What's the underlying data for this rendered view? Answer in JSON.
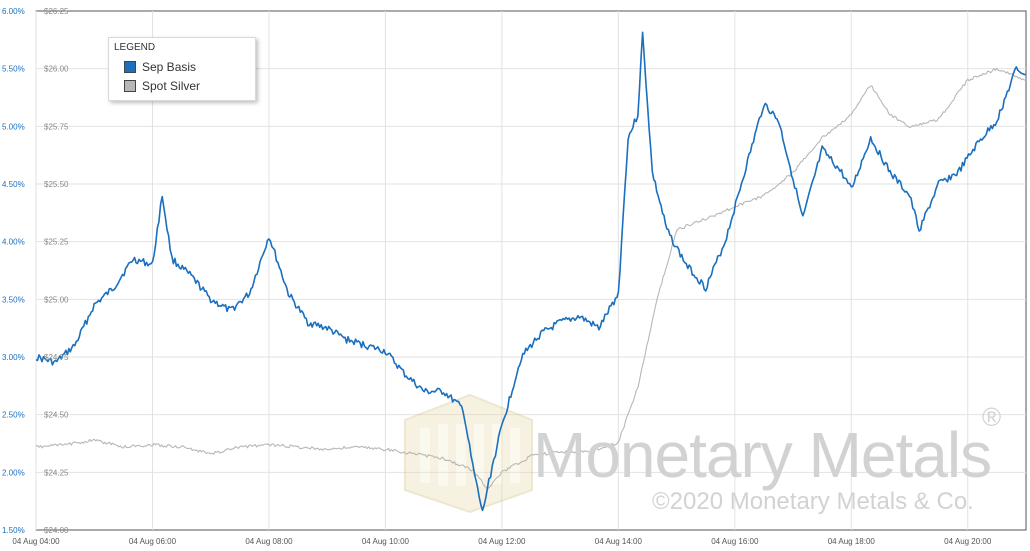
{
  "chart_data": {
    "type": "line",
    "legend": {
      "title": "LEGEND",
      "placement": "top-left"
    },
    "y_left": {
      "label_ticks": [
        "6.00%",
        "5.50%",
        "5.00%",
        "4.50%",
        "4.00%",
        "3.50%",
        "3.00%",
        "2.50%",
        "2.00%",
        "1.50%"
      ],
      "range": [
        1.5,
        6.0
      ],
      "unit": "%"
    },
    "y_right": {
      "label_ticks": [
        "$26.25",
        "$26.00",
        "$25.75",
        "$25.50",
        "$25.25",
        "$25.00",
        "$24.75",
        "$24.50",
        "$24.25",
        "$24.00"
      ],
      "range": [
        24.0,
        26.25
      ],
      "unit": "$"
    },
    "x_axis": {
      "tick_labels": [
        "04 Aug 04:00",
        "04 Aug 06:00",
        "04 Aug 08:00",
        "04 Aug 10:00",
        "04 Aug 12:00",
        "04 Aug 14:00",
        "04 Aug 16:00",
        "04 Aug 18:00",
        "04 Aug 20:00"
      ],
      "range": [
        "04 Aug 04:00",
        "04 Aug 21:00"
      ]
    },
    "grid": true,
    "series": [
      {
        "name": "Sep Basis",
        "color": "#1a6fbf",
        "axis": "left",
        "points": [
          [
            "04 Aug 04:00",
            3.0
          ],
          [
            "04 Aug 04:20",
            2.95
          ],
          [
            "04 Aug 04:40",
            3.1
          ],
          [
            "04 Aug 05:00",
            3.45
          ],
          [
            "04 Aug 05:20",
            3.6
          ],
          [
            "04 Aug 05:40",
            3.85
          ],
          [
            "04 Aug 06:00",
            3.8
          ],
          [
            "04 Aug 06:10",
            4.4
          ],
          [
            "04 Aug 06:20",
            3.85
          ],
          [
            "04 Aug 06:40",
            3.7
          ],
          [
            "04 Aug 07:00",
            3.5
          ],
          [
            "04 Aug 07:20",
            3.4
          ],
          [
            "04 Aug 07:40",
            3.55
          ],
          [
            "04 Aug 08:00",
            4.05
          ],
          [
            "04 Aug 08:20",
            3.55
          ],
          [
            "04 Aug 08:40",
            3.3
          ],
          [
            "04 Aug 09:00",
            3.25
          ],
          [
            "04 Aug 09:20",
            3.15
          ],
          [
            "04 Aug 09:40",
            3.1
          ],
          [
            "04 Aug 10:00",
            3.05
          ],
          [
            "04 Aug 10:20",
            2.85
          ],
          [
            "04 Aug 10:40",
            2.7
          ],
          [
            "04 Aug 11:00",
            2.7
          ],
          [
            "04 Aug 11:20",
            2.55
          ],
          [
            "04 Aug 11:30",
            2.05
          ],
          [
            "04 Aug 11:40",
            1.65
          ],
          [
            "04 Aug 11:50",
            2.05
          ],
          [
            "04 Aug 12:00",
            2.4
          ],
          [
            "04 Aug 12:20",
            3.0
          ],
          [
            "04 Aug 12:40",
            3.2
          ],
          [
            "04 Aug 13:00",
            3.3
          ],
          [
            "04 Aug 13:20",
            3.35
          ],
          [
            "04 Aug 13:40",
            3.25
          ],
          [
            "04 Aug 14:00",
            3.55
          ],
          [
            "04 Aug 14:10",
            4.9
          ],
          [
            "04 Aug 14:20",
            5.1
          ],
          [
            "04 Aug 14:25",
            5.8
          ],
          [
            "04 Aug 14:35",
            4.6
          ],
          [
            "04 Aug 14:50",
            4.1
          ],
          [
            "04 Aug 15:10",
            3.8
          ],
          [
            "04 Aug 15:30",
            3.6
          ],
          [
            "04 Aug 15:50",
            4.0
          ],
          [
            "04 Aug 16:10",
            4.6
          ],
          [
            "04 Aug 16:30",
            5.2
          ],
          [
            "04 Aug 16:45",
            5.05
          ],
          [
            "04 Aug 17:00",
            4.55
          ],
          [
            "04 Aug 17:10",
            4.2
          ],
          [
            "04 Aug 17:30",
            4.8
          ],
          [
            "04 Aug 17:50",
            4.6
          ],
          [
            "04 Aug 18:00",
            4.45
          ],
          [
            "04 Aug 18:20",
            4.9
          ],
          [
            "04 Aug 18:40",
            4.6
          ],
          [
            "04 Aug 19:00",
            4.4
          ],
          [
            "04 Aug 19:10",
            4.1
          ],
          [
            "04 Aug 19:30",
            4.5
          ],
          [
            "04 Aug 19:50",
            4.6
          ],
          [
            "04 Aug 20:10",
            4.85
          ],
          [
            "04 Aug 20:30",
            5.05
          ],
          [
            "04 Aug 20:50",
            5.5
          ],
          [
            "04 Aug 21:00",
            5.45
          ]
        ]
      },
      {
        "name": "Spot Silver",
        "color": "#b7b7b7",
        "axis": "right",
        "points": [
          [
            "04 Aug 04:00",
            24.36
          ],
          [
            "04 Aug 04:30",
            24.37
          ],
          [
            "04 Aug 05:00",
            24.39
          ],
          [
            "04 Aug 05:30",
            24.36
          ],
          [
            "04 Aug 06:00",
            24.37
          ],
          [
            "04 Aug 06:30",
            24.36
          ],
          [
            "04 Aug 07:00",
            24.33
          ],
          [
            "04 Aug 07:30",
            24.36
          ],
          [
            "04 Aug 08:00",
            24.37
          ],
          [
            "04 Aug 08:30",
            24.36
          ],
          [
            "04 Aug 09:00",
            24.35
          ],
          [
            "04 Aug 09:30",
            24.36
          ],
          [
            "04 Aug 10:00",
            24.35
          ],
          [
            "04 Aug 10:30",
            24.33
          ],
          [
            "04 Aug 11:00",
            24.31
          ],
          [
            "04 Aug 11:30",
            24.26
          ],
          [
            "04 Aug 11:45",
            24.18
          ],
          [
            "04 Aug 12:00",
            24.25
          ],
          [
            "04 Aug 12:30",
            24.32
          ],
          [
            "04 Aug 13:00",
            24.34
          ],
          [
            "04 Aug 13:30",
            24.34
          ],
          [
            "04 Aug 14:00",
            24.38
          ],
          [
            "04 Aug 14:20",
            24.62
          ],
          [
            "04 Aug 14:40",
            25.0
          ],
          [
            "04 Aug 15:00",
            25.3
          ],
          [
            "04 Aug 15:30",
            25.35
          ],
          [
            "04 Aug 16:00",
            25.4
          ],
          [
            "04 Aug 16:30",
            25.45
          ],
          [
            "04 Aug 17:00",
            25.55
          ],
          [
            "04 Aug 17:30",
            25.7
          ],
          [
            "04 Aug 18:00",
            25.8
          ],
          [
            "04 Aug 18:20",
            25.93
          ],
          [
            "04 Aug 18:40",
            25.8
          ],
          [
            "04 Aug 19:00",
            25.75
          ],
          [
            "04 Aug 19:30",
            25.78
          ],
          [
            "04 Aug 20:00",
            25.95
          ],
          [
            "04 Aug 20:30",
            26.0
          ],
          [
            "04 Aug 21:00",
            25.95
          ]
        ]
      }
    ]
  },
  "watermark": {
    "brand": "Monetary Metals",
    "registered": "®",
    "copyright": "©2020 Monetary Metals & Co."
  }
}
